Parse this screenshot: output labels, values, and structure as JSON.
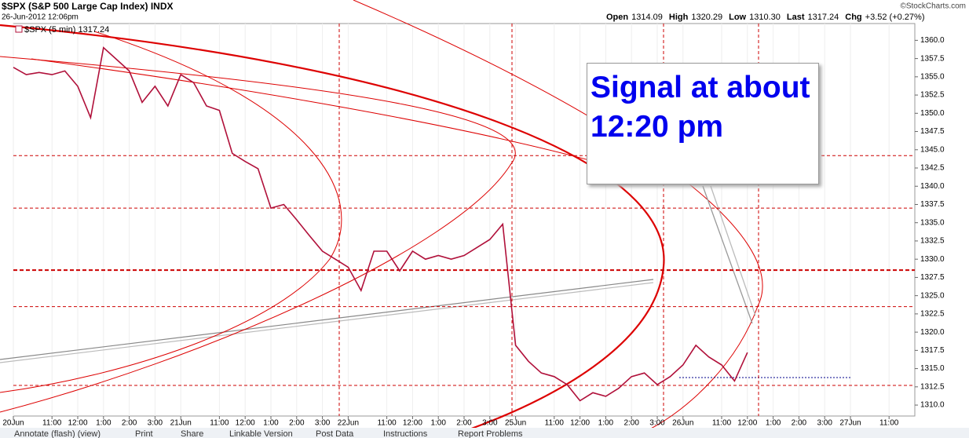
{
  "chart_data": {
    "type": "line",
    "title": "$SPX (S&P 500 Large Cap Index) INDX",
    "subtitle": "26-Jun-2012 12:06pm",
    "copyright": "©StockCharts.com",
    "quote": [
      {
        "label": "Open",
        "value": "1314.09"
      },
      {
        "label": "High",
        "value": "1320.29"
      },
      {
        "label": "Low",
        "value": "1310.30"
      },
      {
        "label": "Last",
        "value": "1317.24"
      },
      {
        "label": "Chg",
        "value": "+3.52 (+0.27%)"
      }
    ],
    "annotation": "Signal at about 12:20 pm",
    "categories": [
      "20Jun",
      null,
      null,
      "11:00",
      null,
      "12:00",
      null,
      "1:00",
      null,
      "2:00",
      null,
      "3:00",
      null,
      "21Jun",
      null,
      null,
      "11:00",
      null,
      "12:00",
      null,
      "1:00",
      null,
      "2:00",
      null,
      "3:00",
      null,
      "22Jun",
      null,
      null,
      "11:00",
      null,
      "12:00",
      null,
      "1:00",
      null,
      "2:00",
      null,
      "3:00",
      null,
      "25Jun",
      null,
      null,
      "11:00",
      null,
      "12:00",
      null,
      "1:00",
      null,
      "2:00",
      null,
      "3:00",
      null,
      "26Jun",
      null,
      null,
      "11:00",
      null,
      "12:00",
      null,
      "1:00",
      null,
      "2:00",
      null,
      "3:00",
      null,
      "27Jun",
      null,
      null,
      "11:00",
      null
    ],
    "series": [
      {
        "name": "$SPX (5 min) 1317.24",
        "color": "#b0103a",
        "values": [
          1356.3,
          1355.3,
          1355.6,
          1355.3,
          1355.8,
          1353.7,
          1349.4,
          1359.0,
          1357.4,
          1355.8,
          1351.5,
          1353.7,
          1351.0,
          1355.3,
          1354.2,
          1351.0,
          1350.4,
          1344.5,
          1343.4,
          1342.4,
          1337.0,
          1337.5,
          1335.4,
          1333.2,
          1331.1,
          1330.0,
          1328.9,
          1325.7,
          1331.1,
          1331.1,
          1328.4,
          1331.1,
          1330.0,
          1330.5,
          1330.0,
          1330.5,
          1331.6,
          1332.7,
          1334.8,
          1318.2,
          1316.0,
          1314.4,
          1313.9,
          1312.8,
          1310.6,
          1311.7,
          1311.2,
          1312.3,
          1313.9,
          1314.4,
          1312.8,
          1313.9,
          1315.5,
          1318.2,
          1316.6,
          1315.5,
          1313.3,
          1317.2,
          null,
          null,
          null,
          null,
          null,
          null,
          null,
          null,
          null,
          null,
          null,
          null
        ]
      }
    ],
    "ylim": [
      1308.5,
      1362.3
    ],
    "yticks": [
      {
        "value": 1310,
        "label": "1310.0"
      },
      {
        "value": 1312.5,
        "label": "1312.5"
      },
      {
        "value": 1315,
        "label": "1315.0"
      },
      {
        "value": 1317.5,
        "label": "1317.5"
      },
      {
        "value": 1320,
        "label": "1320.0"
      },
      {
        "value": 1322.5,
        "label": "1322.5"
      },
      {
        "value": 1325,
        "label": "1325.0"
      },
      {
        "value": 1327.5,
        "label": "1327.5"
      },
      {
        "value": 1330,
        "label": "1330.0"
      },
      {
        "value": 1332.5,
        "label": "1332.5"
      },
      {
        "value": 1335,
        "label": "1335.0"
      },
      {
        "value": 1337.5,
        "label": "1337.5"
      },
      {
        "value": 1340,
        "label": "1340.0"
      },
      {
        "value": 1342.5,
        "label": "1342.5"
      },
      {
        "value": 1345,
        "label": "1345.0"
      },
      {
        "value": 1347.5,
        "label": "1347.5"
      },
      {
        "value": 1350,
        "label": "1350.0"
      },
      {
        "value": 1352.5,
        "label": "1352.5"
      },
      {
        "value": 1355,
        "label": "1355.0"
      },
      {
        "value": 1357.5,
        "label": "1357.5"
      },
      {
        "value": 1360,
        "label": "1360.0"
      }
    ],
    "levels": [
      1344.2,
      1337.0,
      1323.5,
      1312.7
    ],
    "key_level": 1328.5,
    "level_color": "#cc0000",
    "grid": true
  },
  "toolbar": [
    "Annotate (flash) (view)",
    "Print",
    "Share",
    "Linkable Version",
    "Post Data",
    "Instructions",
    "Report Problems"
  ]
}
